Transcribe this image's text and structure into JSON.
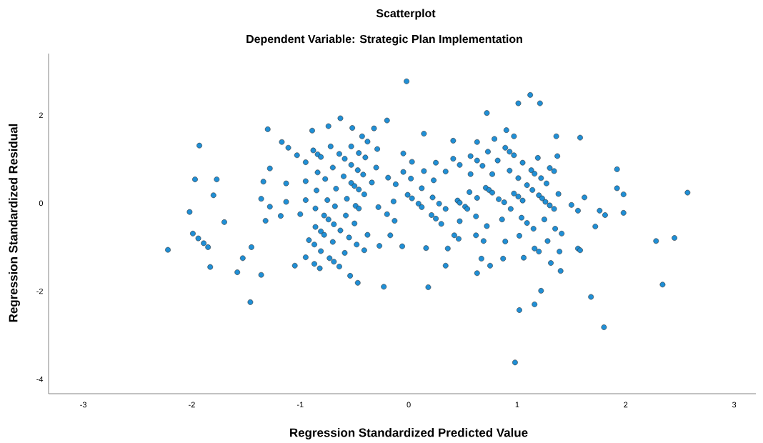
{
  "chart_data": {
    "type": "scatter",
    "title": "Scatterplot",
    "subtitle": "Dependent Variable: Strategic Plan Implementation",
    "xlabel": "Regression Standardized Predicted Value",
    "ylabel": "Regression Standardized Residual",
    "xlim": [
      -3.32,
      3.2
    ],
    "ylim": [
      -4.33,
      3.4
    ],
    "xticks": [
      -3,
      -2,
      -1,
      0,
      1,
      2,
      3
    ],
    "yticks": [
      -4,
      -2,
      0,
      2
    ],
    "grid": false,
    "marker": "circle",
    "series": [
      {
        "color": "#1f8fd6",
        "x": [
          -1.3,
          -1.93,
          -1.17,
          -1.11,
          -1.03,
          -0.95,
          -0.89,
          -0.74,
          -0.63,
          -0.88,
          -0.84,
          -0.81,
          -0.72,
          -0.64,
          -1.97,
          -1.77,
          -1.8,
          -2.02,
          -1.28,
          -1.34,
          -1.13,
          -0.95,
          -0.85,
          -0.84,
          -0.77,
          -0.7,
          -0.67,
          -1.36,
          -1.13,
          -1.28,
          -1.18,
          -1.0,
          -0.95,
          -0.86,
          -0.78,
          -0.75,
          -0.68,
          -1.7,
          -1.32,
          -1.99,
          -1.94,
          -1.89,
          -1.85,
          -2.22,
          -1.45,
          -1.53,
          -1.83,
          -1.58,
          -1.36,
          -1.46,
          -0.86,
          -0.81,
          -0.78,
          -0.92,
          -0.87,
          -0.81,
          -0.7,
          -0.95,
          -1.05,
          -0.87,
          -0.82,
          -0.73,
          -0.69,
          -0.64,
          -0.74,
          -0.69,
          -0.63,
          -0.02,
          1.01,
          0.72,
          -0.2,
          -0.52,
          -0.32,
          0.14,
          0.9,
          0.97,
          -0.43,
          -0.38,
          0.41,
          0.63,
          0.79,
          -0.53,
          -0.46,
          -0.4,
          -0.29,
          -0.05,
          -0.59,
          0.73,
          0.89,
          0.93,
          0.97,
          0.57,
          0.63,
          0.68,
          0.41,
          0.47,
          0.03,
          0.25,
          0.82,
          -0.53,
          -0.47,
          -0.42,
          -0.3,
          -0.05,
          0.02,
          0.14,
          0.23,
          0.34,
          0.57,
          0.77,
          0.93,
          -0.6,
          -0.19,
          -0.12,
          -0.34,
          -0.53,
          -0.5,
          -0.46,
          -0.41,
          0.12,
          0.71,
          0.74,
          0.77,
          1.01,
          0.97,
          -0.57,
          -0.01,
          0.03,
          0.22,
          0.56,
          0.63,
          0.83,
          0.88,
          -0.14,
          -0.28,
          -0.49,
          -0.46,
          0.09,
          0.12,
          0.28,
          0.34,
          0.45,
          0.47,
          0.52,
          0.54,
          0.94,
          -0.58,
          -0.2,
          0.21,
          0.25,
          0.62,
          0.86,
          -0.5,
          -0.13,
          -0.55,
          -0.48,
          -0.41,
          -0.38,
          -0.17,
          -0.27,
          -0.06,
          -0.59,
          -0.54,
          -0.47,
          -0.23,
          0.16,
          0.36,
          0.34,
          0.18,
          0.3,
          0.47,
          0.42,
          0.46,
          0.72,
          0.62,
          0.69,
          0.89,
          0.67,
          0.75,
          0.87,
          0.63,
          1.02,
          0.98,
          1.12,
          1.21,
          1.36,
          1.58,
          1.37,
          1.19,
          1.05,
          1.3,
          1.34,
          1.13,
          1.16,
          1.22,
          1.27,
          1.92,
          1.09,
          1.14,
          1.2,
          1.23,
          1.26,
          1.3,
          1.34,
          1.38,
          1.62,
          1.92,
          1.98,
          2.57,
          1.01,
          1.05,
          1.5,
          1.56,
          1.76,
          1.81,
          1.98,
          1.04,
          1.25,
          1.09,
          1.15,
          1.35,
          1.41,
          1.72,
          1.02,
          1.28,
          1.16,
          1.2,
          1.39,
          1.56,
          1.58,
          1.06,
          1.31,
          1.4,
          2.28,
          2.45,
          2.34,
          1.22,
          1.68,
          1.16,
          1.8
        ],
        "values": [
          1.68,
          1.31,
          1.39,
          1.26,
          1.09,
          0.93,
          1.65,
          1.75,
          1.93,
          1.2,
          1.11,
          1.05,
          1.29,
          1.12,
          0.54,
          0.54,
          0.18,
          -0.2,
          0.79,
          0.49,
          0.45,
          0.5,
          0.29,
          0.7,
          0.55,
          0.81,
          0.33,
          0.1,
          0.03,
          -0.08,
          -0.29,
          -0.25,
          0.07,
          -0.12,
          -0.28,
          0.07,
          -0.07,
          -0.43,
          -0.4,
          -0.69,
          -0.8,
          -0.91,
          -1.0,
          -1.06,
          -1.0,
          -1.25,
          -1.45,
          -1.57,
          -1.63,
          -2.25,
          -0.54,
          -0.64,
          -0.72,
          -0.84,
          -0.94,
          -1.09,
          -0.88,
          -1.23,
          -1.42,
          -1.38,
          -1.48,
          -1.25,
          -1.33,
          -1.44,
          -0.37,
          -0.48,
          -0.62,
          2.77,
          2.27,
          2.05,
          1.88,
          1.71,
          1.7,
          1.58,
          1.66,
          1.52,
          1.52,
          1.4,
          1.42,
          1.39,
          1.46,
          1.29,
          1.14,
          1.04,
          1.23,
          1.13,
          1.01,
          1.17,
          1.26,
          1.17,
          1.09,
          1.07,
          0.97,
          0.85,
          1.01,
          0.87,
          0.94,
          0.92,
          0.97,
          0.87,
          0.75,
          0.65,
          0.81,
          0.71,
          0.56,
          0.73,
          0.52,
          0.72,
          0.66,
          0.66,
          0.74,
          0.61,
          0.58,
          0.43,
          0.47,
          0.46,
          0.39,
          0.31,
          0.2,
          0.34,
          0.35,
          0.3,
          0.24,
          0.57,
          0.22,
          0.1,
          0.19,
          0.11,
          0.13,
          0.25,
          0.12,
          0.09,
          0.02,
          0.04,
          -0.09,
          -0.06,
          -0.12,
          -0.01,
          -0.09,
          -0.01,
          -0.13,
          0.06,
          0.01,
          -0.08,
          -0.13,
          -0.13,
          -0.28,
          -0.25,
          -0.27,
          -0.35,
          -0.3,
          -0.37,
          -0.46,
          -0.4,
          -0.78,
          -0.94,
          -1.07,
          -0.72,
          -0.73,
          -0.97,
          -0.98,
          -1.13,
          -1.65,
          -1.81,
          -1.9,
          -1.02,
          -1.03,
          -1.42,
          -1.91,
          -0.47,
          -0.41,
          -0.73,
          -0.81,
          -0.52,
          -0.73,
          -0.86,
          -0.87,
          -1.26,
          -1.42,
          -1.26,
          -1.59,
          -2.43,
          -3.62,
          2.46,
          2.27,
          1.52,
          1.49,
          1.07,
          1.03,
          0.92,
          0.8,
          0.73,
          0.75,
          0.67,
          0.57,
          0.45,
          0.77,
          0.41,
          0.3,
          0.18,
          0.11,
          0.03,
          -0.05,
          -0.13,
          0.21,
          0.13,
          0.34,
          0.2,
          0.24,
          0.15,
          0.06,
          -0.04,
          -0.17,
          -0.17,
          -0.27,
          -0.22,
          -0.33,
          -0.37,
          -0.45,
          -0.58,
          -0.58,
          -0.69,
          -0.53,
          -0.74,
          -0.86,
          -1.03,
          -1.1,
          -1.1,
          -1.03,
          -1.07,
          -1.24,
          -1.36,
          -1.54,
          -0.86,
          -0.79,
          -1.85,
          -1.99,
          -2.13,
          -2.3,
          -2.82
        ]
      }
    ]
  }
}
